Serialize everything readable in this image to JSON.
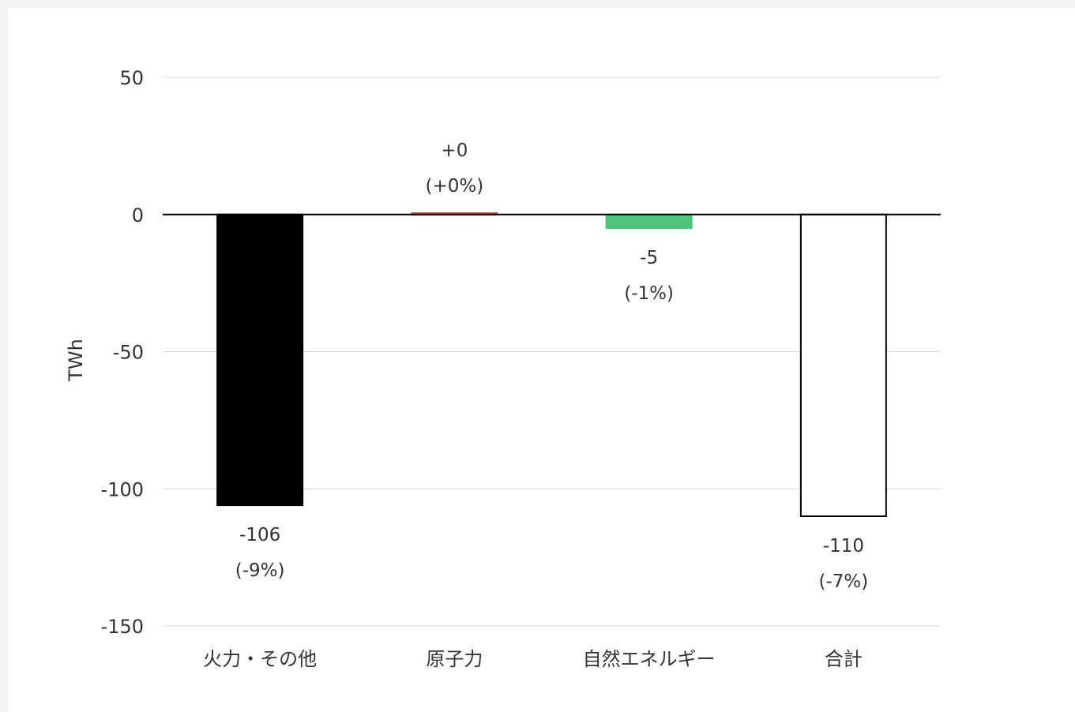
{
  "chart_data": {
    "type": "bar",
    "title": "",
    "xlabel": "",
    "ylabel": "TWh",
    "ylim": [
      -150,
      50
    ],
    "yticks": [
      50,
      0,
      -50,
      -100,
      -150
    ],
    "ytick_labels": [
      "50",
      "0",
      "-50",
      "-100",
      "-150"
    ],
    "grid": true,
    "legend": "none",
    "categories": [
      "火力・その他",
      "原子力",
      "自然エネルギー",
      "合計"
    ],
    "values": [
      -106,
      0.5,
      -5,
      -110
    ],
    "colors": [
      "#000000",
      "#c0504d",
      "#4cc57f",
      "#ffffff"
    ],
    "outline_colors": [
      "#000000",
      "#c0504d",
      "#4cc57f",
      "#000000"
    ],
    "value_labels": [
      "-106",
      "+0",
      "-5",
      "-110"
    ],
    "percent_labels": [
      "(-9%)",
      "(+0%)",
      "(-1%)",
      "(-7%)"
    ]
  }
}
